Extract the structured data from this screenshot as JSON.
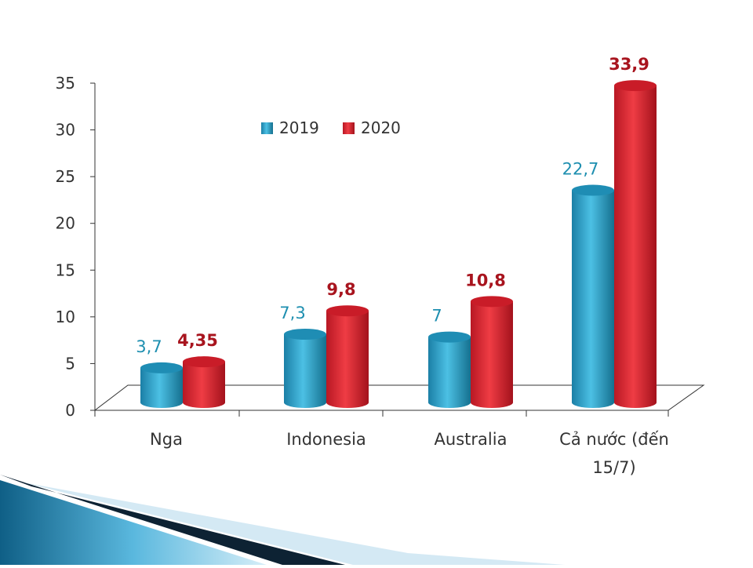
{
  "chart_data": {
    "type": "bar",
    "categories": [
      "Nga",
      "Indonesia",
      "Australia",
      "Cả nước (đến|15/7)"
    ],
    "series": [
      {
        "name": "2019",
        "values": [
          3.7,
          7.3,
          7,
          22.7
        ],
        "labels": [
          "3,7",
          "7,3",
          "7",
          "22,7"
        ]
      },
      {
        "name": "2020",
        "values": [
          4.35,
          9.8,
          10.8,
          33.9
        ],
        "labels": [
          "4,35",
          "9,8",
          "10,8",
          "33,9"
        ]
      }
    ],
    "yticks": [
      "0",
      "5",
      "10",
      "15",
      "20",
      "25",
      "30",
      "35"
    ],
    "ylim": [
      0,
      35
    ],
    "legend_position": "top-center",
    "grid": false
  },
  "colors": {
    "series_2019": "#2596be",
    "series_2020": "#d42030",
    "label_2019": "#1e8fb0",
    "label_2020": "#a8141e",
    "axis": "#333333",
    "decoration": "#1b6f95"
  }
}
